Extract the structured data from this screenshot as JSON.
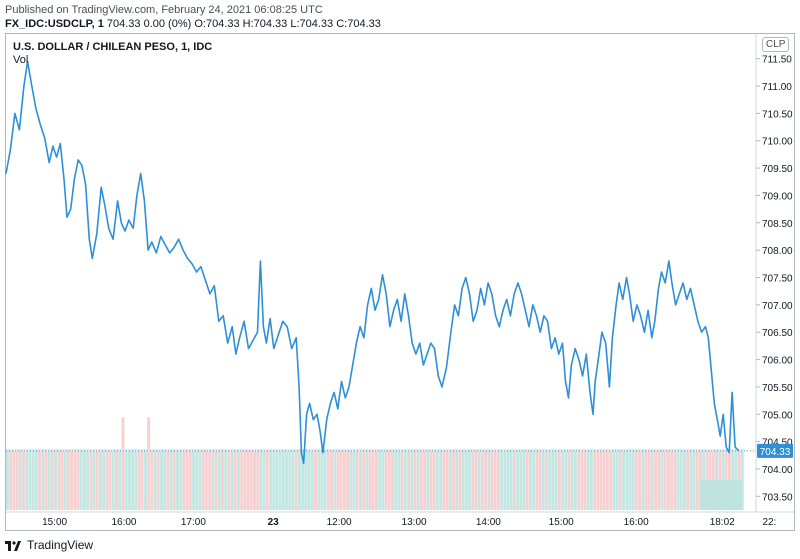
{
  "header": {
    "published": "Published on TradingView.com, February 24, 2021 06:08:25 UTC",
    "symbol": "FX_IDC:USDCLP, 1",
    "ohlc": "704.33 0.00 (0%) O:704.33 H:704.33 L:704.33 C:704.33"
  },
  "chart": {
    "title": "U.S. DOLLAR / CHILEAN PESO, 1, IDC",
    "vol_label": "Vol",
    "currency_badge": "CLP",
    "last_price_label": "704.33"
  },
  "footer": {
    "brand": "TradingView"
  },
  "colors": {
    "line": "#2e8fd6",
    "price_label_bg": "#2e8fd6",
    "vol_up": "#b9e3dd",
    "vol_down": "#f6c9c9",
    "axis_text": "#131722"
  },
  "chart_data": {
    "type": "line",
    "title": "U.S. DOLLAR / CHILEAN PESO, 1, IDC",
    "ylabel": "CLP",
    "ylim": [
      703.25,
      711.75
    ],
    "y_ticks": [
      "703.50",
      "704.00",
      "704.50",
      "705.00",
      "705.50",
      "706.00",
      "706.50",
      "707.00",
      "707.50",
      "708.00",
      "708.50",
      "709.00",
      "709.50",
      "710.00",
      "710.50",
      "711.00",
      "711.50"
    ],
    "x_ticks": [
      {
        "label": "15:00",
        "t": 0.07
      },
      {
        "label": "16:00",
        "t": 0.17
      },
      {
        "label": "17:00",
        "t": 0.27
      },
      {
        "label": "23",
        "t": 0.385,
        "bold": true
      },
      {
        "label": "12:00",
        "t": 0.48
      },
      {
        "label": "13:00",
        "t": 0.588
      },
      {
        "label": "14:00",
        "t": 0.695
      },
      {
        "label": "15:00",
        "t": 0.8
      },
      {
        "label": "16:00",
        "t": 0.908
      },
      {
        "label": "18:02",
        "t": 1.032
      },
      {
        "label": "22:",
        "t": 1.1
      }
    ],
    "series": [
      {
        "name": "USDCLP",
        "points": [
          [
            0.0,
            709.4
          ],
          [
            0.006,
            709.85
          ],
          [
            0.012,
            710.5
          ],
          [
            0.018,
            710.2
          ],
          [
            0.024,
            711.0
          ],
          [
            0.029,
            711.45
          ],
          [
            0.034,
            711.05
          ],
          [
            0.04,
            710.6
          ],
          [
            0.046,
            710.3
          ],
          [
            0.052,
            710.05
          ],
          [
            0.058,
            709.6
          ],
          [
            0.063,
            709.9
          ],
          [
            0.068,
            709.7
          ],
          [
            0.073,
            709.95
          ],
          [
            0.078,
            709.3
          ],
          [
            0.082,
            708.6
          ],
          [
            0.087,
            708.75
          ],
          [
            0.092,
            709.3
          ],
          [
            0.097,
            709.65
          ],
          [
            0.102,
            709.55
          ],
          [
            0.107,
            709.2
          ],
          [
            0.112,
            708.2
          ],
          [
            0.116,
            707.85
          ],
          [
            0.122,
            708.3
          ],
          [
            0.128,
            709.15
          ],
          [
            0.133,
            708.8
          ],
          [
            0.138,
            708.4
          ],
          [
            0.144,
            708.2
          ],
          [
            0.15,
            708.9
          ],
          [
            0.155,
            708.5
          ],
          [
            0.16,
            708.35
          ],
          [
            0.165,
            708.55
          ],
          [
            0.171,
            708.4
          ],
          [
            0.176,
            709.0
          ],
          [
            0.181,
            709.4
          ],
          [
            0.186,
            708.9
          ],
          [
            0.191,
            708.0
          ],
          [
            0.196,
            708.15
          ],
          [
            0.202,
            707.95
          ],
          [
            0.208,
            708.25
          ],
          [
            0.214,
            708.1
          ],
          [
            0.22,
            707.95
          ],
          [
            0.226,
            708.05
          ],
          [
            0.232,
            708.2
          ],
          [
            0.238,
            708.0
          ],
          [
            0.244,
            707.85
          ],
          [
            0.25,
            707.75
          ],
          [
            0.256,
            707.6
          ],
          [
            0.262,
            707.7
          ],
          [
            0.268,
            707.45
          ],
          [
            0.274,
            707.2
          ],
          [
            0.28,
            707.35
          ],
          [
            0.286,
            706.7
          ],
          [
            0.292,
            706.8
          ],
          [
            0.298,
            706.3
          ],
          [
            0.304,
            706.6
          ],
          [
            0.309,
            706.1
          ],
          [
            0.314,
            706.4
          ],
          [
            0.32,
            706.7
          ],
          [
            0.326,
            706.2
          ],
          [
            0.332,
            706.35
          ],
          [
            0.338,
            706.5
          ],
          [
            0.342,
            707.8
          ],
          [
            0.346,
            706.6
          ],
          [
            0.35,
            706.3
          ],
          [
            0.355,
            706.75
          ],
          [
            0.36,
            706.2
          ],
          [
            0.366,
            706.45
          ],
          [
            0.372,
            706.7
          ],
          [
            0.378,
            706.6
          ],
          [
            0.384,
            706.2
          ],
          [
            0.39,
            706.4
          ],
          [
            0.394,
            705.5
          ],
          [
            0.397,
            704.3
          ],
          [
            0.4,
            704.1
          ],
          [
            0.404,
            705.0
          ],
          [
            0.408,
            705.2
          ],
          [
            0.413,
            704.9
          ],
          [
            0.418,
            705.0
          ],
          [
            0.422,
            704.7
          ],
          [
            0.426,
            704.3
          ],
          [
            0.431,
            704.9
          ],
          [
            0.436,
            705.2
          ],
          [
            0.441,
            705.4
          ],
          [
            0.446,
            705.1
          ],
          [
            0.451,
            705.6
          ],
          [
            0.456,
            705.3
          ],
          [
            0.461,
            705.5
          ],
          [
            0.466,
            705.9
          ],
          [
            0.471,
            706.3
          ],
          [
            0.476,
            706.6
          ],
          [
            0.481,
            706.4
          ],
          [
            0.486,
            707.0
          ],
          [
            0.491,
            707.3
          ],
          [
            0.496,
            706.9
          ],
          [
            0.501,
            707.1
          ],
          [
            0.506,
            707.55
          ],
          [
            0.511,
            707.2
          ],
          [
            0.516,
            706.6
          ],
          [
            0.521,
            706.9
          ],
          [
            0.526,
            707.1
          ],
          [
            0.531,
            706.7
          ],
          [
            0.536,
            707.2
          ],
          [
            0.541,
            706.8
          ],
          [
            0.546,
            706.3
          ],
          [
            0.551,
            706.1
          ],
          [
            0.556,
            706.3
          ],
          [
            0.561,
            705.9
          ],
          [
            0.566,
            706.1
          ],
          [
            0.571,
            706.3
          ],
          [
            0.576,
            706.2
          ],
          [
            0.581,
            705.7
          ],
          [
            0.586,
            705.5
          ],
          [
            0.592,
            705.85
          ],
          [
            0.598,
            706.5
          ],
          [
            0.603,
            707.0
          ],
          [
            0.608,
            706.8
          ],
          [
            0.613,
            707.3
          ],
          [
            0.618,
            707.5
          ],
          [
            0.623,
            707.2
          ],
          [
            0.628,
            706.7
          ],
          [
            0.633,
            706.9
          ],
          [
            0.638,
            707.3
          ],
          [
            0.643,
            707.0
          ],
          [
            0.648,
            707.4
          ],
          [
            0.653,
            707.2
          ],
          [
            0.658,
            706.8
          ],
          [
            0.663,
            706.6
          ],
          [
            0.668,
            706.9
          ],
          [
            0.673,
            707.1
          ],
          [
            0.678,
            706.8
          ],
          [
            0.683,
            707.2
          ],
          [
            0.688,
            707.4
          ],
          [
            0.693,
            707.2
          ],
          [
            0.698,
            706.9
          ],
          [
            0.703,
            706.6
          ],
          [
            0.708,
            707.0
          ],
          [
            0.713,
            706.8
          ],
          [
            0.718,
            706.5
          ],
          [
            0.723,
            706.8
          ],
          [
            0.728,
            706.7
          ],
          [
            0.733,
            706.2
          ],
          [
            0.738,
            706.4
          ],
          [
            0.743,
            706.1
          ],
          [
            0.748,
            706.3
          ],
          [
            0.752,
            705.6
          ],
          [
            0.756,
            705.3
          ],
          [
            0.76,
            705.9
          ],
          [
            0.765,
            706.2
          ],
          [
            0.77,
            706.0
          ],
          [
            0.775,
            705.7
          ],
          [
            0.78,
            706.1
          ],
          [
            0.785,
            705.4
          ],
          [
            0.789,
            705.0
          ],
          [
            0.792,
            705.6
          ],
          [
            0.797,
            706.1
          ],
          [
            0.801,
            706.5
          ],
          [
            0.806,
            706.3
          ],
          [
            0.811,
            705.5
          ],
          [
            0.815,
            706.4
          ],
          [
            0.82,
            707.0
          ],
          [
            0.824,
            707.4
          ],
          [
            0.829,
            707.1
          ],
          [
            0.834,
            707.5
          ],
          [
            0.838,
            707.2
          ],
          [
            0.843,
            706.7
          ],
          [
            0.848,
            707.0
          ],
          [
            0.853,
            706.8
          ],
          [
            0.858,
            706.5
          ],
          [
            0.863,
            706.9
          ],
          [
            0.868,
            706.4
          ],
          [
            0.872,
            706.7
          ],
          [
            0.877,
            707.3
          ],
          [
            0.881,
            707.6
          ],
          [
            0.886,
            707.4
          ],
          [
            0.891,
            707.8
          ],
          [
            0.895,
            707.4
          ],
          [
            0.9,
            707.0
          ],
          [
            0.905,
            707.2
          ],
          [
            0.91,
            707.4
          ],
          [
            0.915,
            707.1
          ],
          [
            0.92,
            707.3
          ],
          [
            0.925,
            707.0
          ],
          [
            0.93,
            706.7
          ],
          [
            0.935,
            706.5
          ],
          [
            0.94,
            706.6
          ],
          [
            0.944,
            706.4
          ],
          [
            0.948,
            705.8
          ],
          [
            0.952,
            705.2
          ],
          [
            0.956,
            704.9
          ],
          [
            0.96,
            704.6
          ],
          [
            0.964,
            705.0
          ],
          [
            0.968,
            704.4
          ],
          [
            0.972,
            704.3
          ],
          [
            0.976,
            705.4
          ],
          [
            0.98,
            704.4
          ],
          [
            0.985,
            704.33
          ]
        ]
      }
    ],
    "volume": {
      "scale_max": 1.0,
      "bars_count": 230,
      "typical": 0.5,
      "spike_examples": [
        0.6,
        0.7,
        1.0
      ]
    }
  }
}
